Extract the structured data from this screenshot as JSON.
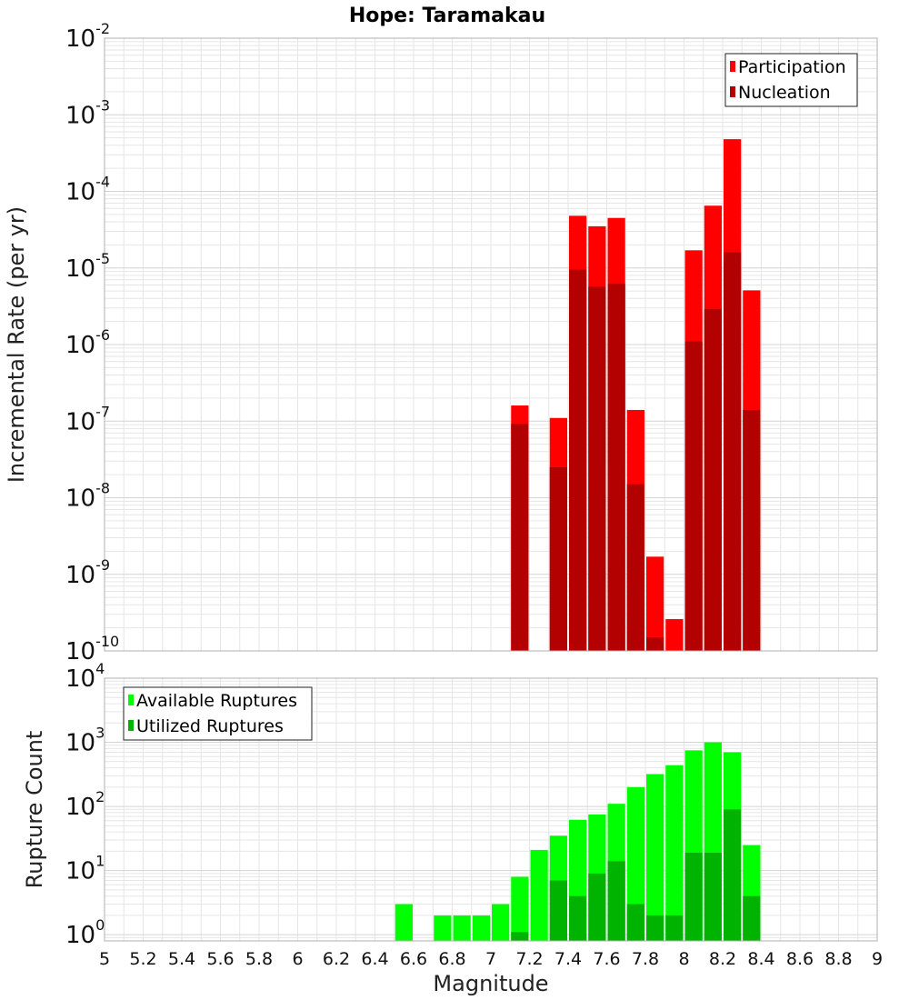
{
  "title": "Hope: Taramakau",
  "xlabel": "Magnitude",
  "x_ticks": [
    "5",
    "5.2",
    "5.4",
    "5.6",
    "5.8",
    "6",
    "6.2",
    "6.4",
    "6.6",
    "6.8",
    "7",
    "7.2",
    "7.4",
    "7.6",
    "7.8",
    "8",
    "8.2",
    "8.4",
    "8.6",
    "8.8",
    "9"
  ],
  "colors": {
    "participation": "#ff0000",
    "nucleation": "#b30000",
    "available": "#00ff00",
    "utilized": "#00b300",
    "grid": "#e6e6e6",
    "frame": "#b0b0b0"
  },
  "chart_data": [
    {
      "type": "bar",
      "panel": "top",
      "ylabel": "Incremental Rate (per yr)",
      "y_scale": "log",
      "ylim": [
        1e-10,
        0.01
      ],
      "xlim": [
        5,
        9
      ],
      "y_ticks": [
        {
          "base": "10",
          "exp": "-10",
          "value": 1e-10
        },
        {
          "base": "10",
          "exp": "-9",
          "value": 1e-09
        },
        {
          "base": "10",
          "exp": "-8",
          "value": 1e-08
        },
        {
          "base": "10",
          "exp": "-7",
          "value": 1e-07
        },
        {
          "base": "10",
          "exp": "-6",
          "value": 1e-06
        },
        {
          "base": "10",
          "exp": "-5",
          "value": 1e-05
        },
        {
          "base": "10",
          "exp": "-4",
          "value": 0.0001
        },
        {
          "base": "10",
          "exp": "-3",
          "value": 0.001
        },
        {
          "base": "10",
          "exp": "-2",
          "value": 0.01
        }
      ],
      "legend_position": "top-right",
      "x": [
        7.15,
        7.35,
        7.45,
        7.55,
        7.65,
        7.75,
        7.85,
        7.95,
        8.05,
        8.15,
        8.25,
        8.35
      ],
      "series": [
        {
          "name": "Participation",
          "color_key": "participation",
          "values": [
            1.6e-07,
            1.1e-07,
            4.8e-05,
            3.5e-05,
            4.5e-05,
            1.4e-07,
            1.7e-09,
            2.6e-10,
            1.7e-05,
            6.5e-05,
            0.00048,
            5.1e-06
          ]
        },
        {
          "name": "Nucleation",
          "color_key": "nucleation",
          "values": [
            9.2e-08,
            2.5e-08,
            9.5e-06,
            5.7e-06,
            6.2e-06,
            1.5e-08,
            1.5e-10,
            null,
            1.1e-06,
            2.9e-06,
            1.6e-05,
            1.4e-07
          ]
        }
      ]
    },
    {
      "type": "bar",
      "panel": "bottom",
      "ylabel": "Rupture Count",
      "y_scale": "log",
      "ylim": [
        0.8,
        10000
      ],
      "xlim": [
        5,
        9
      ],
      "y_ticks": [
        {
          "base": "10",
          "exp": "0",
          "value": 1
        },
        {
          "base": "10",
          "exp": "1",
          "value": 10
        },
        {
          "base": "10",
          "exp": "2",
          "value": 100
        },
        {
          "base": "10",
          "exp": "3",
          "value": 1000
        },
        {
          "base": "10",
          "exp": "4",
          "value": 10000
        }
      ],
      "legend_position": "top-left",
      "x": [
        6.55,
        6.75,
        6.85,
        6.95,
        7.05,
        7.15,
        7.25,
        7.35,
        7.45,
        7.55,
        7.65,
        7.75,
        7.85,
        7.95,
        8.05,
        8.15,
        8.25,
        8.35
      ],
      "series": [
        {
          "name": "Available Ruptures",
          "color_key": "available",
          "values": [
            3,
            2,
            2,
            2,
            3,
            8,
            21,
            35,
            62,
            75,
            110,
            200,
            320,
            440,
            750,
            1000,
            700,
            25
          ]
        },
        {
          "name": "Utilized Ruptures",
          "color_key": "utilized",
          "values": [
            null,
            null,
            null,
            null,
            null,
            1.1,
            null,
            7,
            4,
            9,
            14,
            3,
            2,
            2,
            19,
            19,
            90,
            4
          ]
        }
      ]
    }
  ]
}
